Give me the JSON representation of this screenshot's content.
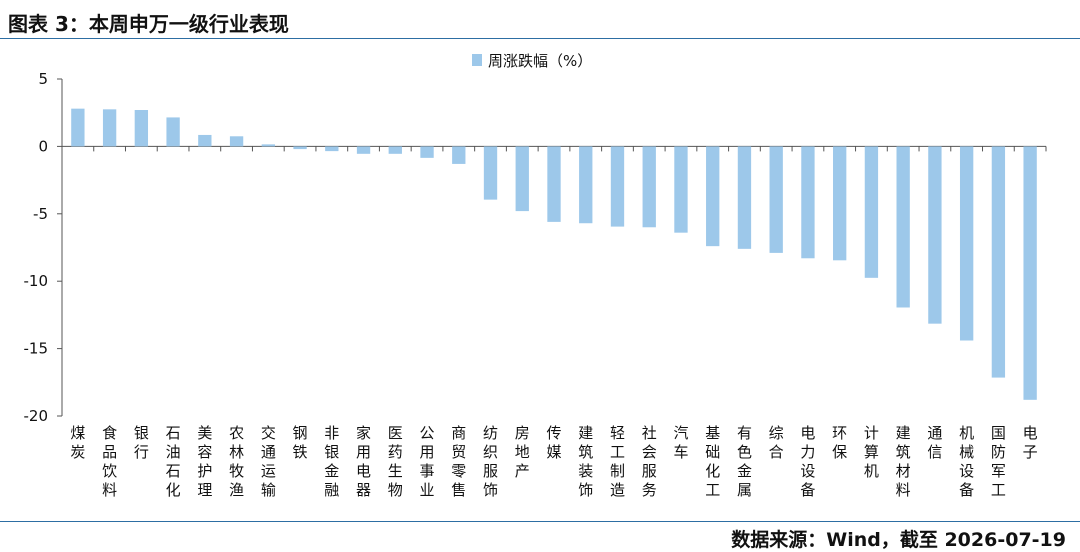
{
  "header": {
    "title": "图表 3：本周申万一级行业表现"
  },
  "footer": {
    "source": "数据来源：Wind，截至 2026-07-19"
  },
  "colors": {
    "bar": "#9dc8ea",
    "rule": "#2d6ea3",
    "axis": "#555555"
  },
  "chart_data": {
    "type": "bar",
    "title": "",
    "xlabel": "",
    "ylabel": "",
    "legend_position": "top-center",
    "grid": false,
    "ylim": [
      -20,
      5
    ],
    "yticks": [
      5,
      0,
      -5,
      -10,
      -15,
      -20
    ],
    "categories": [
      "煤炭",
      "食品饮料",
      "银行",
      "石油石化",
      "美容护理",
      "农林牧渔",
      "交通运输",
      "钢铁",
      "非银金融",
      "家用电器",
      "医药生物",
      "公用事业",
      "商贸零售",
      "纺织服饰",
      "房地产",
      "传媒",
      "建筑装饰",
      "轻工制造",
      "社会服务",
      "汽车",
      "基础化工",
      "有色金属",
      "综合",
      "电力设备",
      "环保",
      "计算机",
      "建筑材料",
      "通信",
      "机械设备",
      "国防军工",
      "电子"
    ],
    "series": [
      {
        "name": "周涨跌幅（%）",
        "values": [
          2.8,
          2.75,
          2.7,
          2.15,
          0.85,
          0.75,
          0.15,
          -0.2,
          -0.35,
          -0.55,
          -0.55,
          -0.85,
          -1.3,
          -3.95,
          -4.8,
          -5.6,
          -5.7,
          -5.95,
          -6.0,
          -6.4,
          -7.4,
          -7.6,
          -7.9,
          -8.3,
          -8.45,
          -9.75,
          -11.95,
          -13.15,
          -14.4,
          -17.15,
          -18.8
        ]
      }
    ]
  }
}
